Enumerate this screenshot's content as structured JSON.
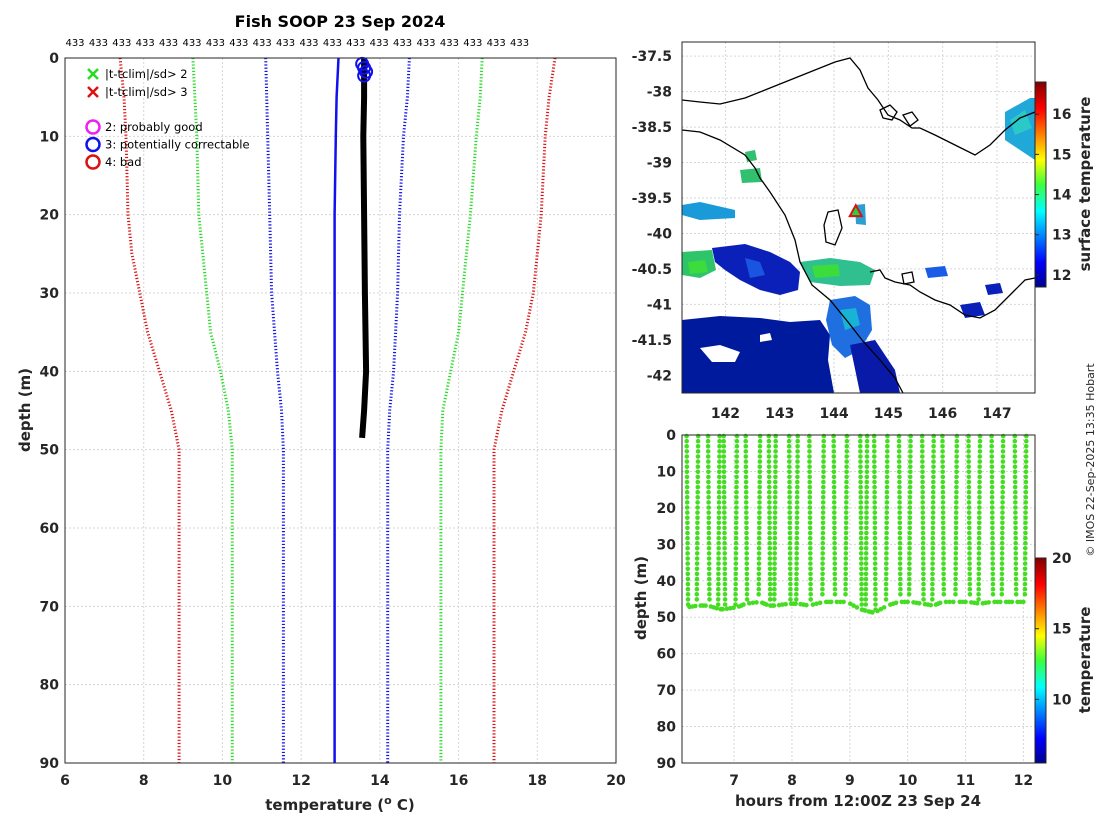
{
  "title": "Fish SOOP 23 Sep 2024",
  "credit": "© IMOS 22-Sep-2025 13:35 Hobart",
  "colors": {
    "green": "#22dd22",
    "red": "#dd1111",
    "blue": "#1111ee",
    "magenta": "#ee22ee",
    "black": "#000000"
  },
  "chart_data": [
    {
      "id": "profile",
      "type": "line",
      "xlabel": "temperature (o C)",
      "xlabel_main": "temperature (",
      "xlabel_sup": "o",
      "xlabel_end": " C)",
      "ylabel": "depth (m)",
      "xlim": [
        6,
        20
      ],
      "ylim": [
        90,
        0
      ],
      "xticks": [
        6,
        8,
        10,
        12,
        14,
        16,
        18,
        20
      ],
      "yticks": [
        0,
        10,
        20,
        30,
        40,
        50,
        60,
        70,
        80,
        90
      ],
      "top_labels": [
        "433",
        "433",
        "433",
        "433",
        "433",
        "433",
        "433",
        "433",
        "433",
        "433",
        "433",
        "433",
        "433",
        "433",
        "433",
        "433",
        "433",
        "433",
        "433",
        "433"
      ],
      "legend": [
        {
          "marker": "x",
          "color": "#22dd22",
          "label": "|t-tclim|/sd> 2"
        },
        {
          "marker": "x",
          "color": "#dd1111",
          "label": "|t-tclim|/sd> 3"
        },
        {
          "marker": "o",
          "color": "#ee22ee",
          "label": "2: probably good"
        },
        {
          "marker": "o",
          "color": "#1111ee",
          "label": "3: potentially correctable"
        },
        {
          "marker": "o",
          "color": "#dd1111",
          "label": "4: bad"
        }
      ],
      "series": [
        {
          "name": "clim -3sd",
          "color": "#dd1111",
          "style": "dotted",
          "points": [
            [
              7.4,
              0
            ],
            [
              7.5,
              5
            ],
            [
              7.55,
              10
            ],
            [
              7.6,
              20
            ],
            [
              7.7,
              25
            ],
            [
              7.9,
              30
            ],
            [
              8.1,
              35
            ],
            [
              8.4,
              40
            ],
            [
              8.7,
              45
            ],
            [
              8.9,
              50
            ],
            [
              8.9,
              90
            ]
          ]
        },
        {
          "name": "clim -2sd",
          "color": "#22dd22",
          "style": "dotted",
          "points": [
            [
              9.25,
              0
            ],
            [
              9.3,
              5
            ],
            [
              9.35,
              10
            ],
            [
              9.4,
              20
            ],
            [
              9.5,
              25
            ],
            [
              9.6,
              30
            ],
            [
              9.7,
              35
            ],
            [
              9.95,
              40
            ],
            [
              10.15,
              45
            ],
            [
              10.25,
              50
            ],
            [
              10.25,
              90
            ]
          ]
        },
        {
          "name": "clim -1sd",
          "color": "#1111ee",
          "style": "dotted",
          "points": [
            [
              11.1,
              0
            ],
            [
              11.15,
              10
            ],
            [
              11.2,
              20
            ],
            [
              11.25,
              30
            ],
            [
              11.4,
              40
            ],
            [
              11.5,
              45
            ],
            [
              11.55,
              50
            ],
            [
              11.55,
              90
            ]
          ]
        },
        {
          "name": "clim mean",
          "color": "#1111ee",
          "style": "solid",
          "points": [
            [
              12.95,
              0
            ],
            [
              12.9,
              5
            ],
            [
              12.88,
              10
            ],
            [
              12.85,
              20
            ],
            [
              12.85,
              30
            ],
            [
              12.85,
              40
            ],
            [
              12.85,
              50
            ],
            [
              12.85,
              90
            ]
          ]
        },
        {
          "name": "clim +1sd",
          "color": "#1111ee",
          "style": "dotted",
          "points": [
            [
              14.75,
              0
            ],
            [
              14.7,
              5
            ],
            [
              14.6,
              10
            ],
            [
              14.5,
              20
            ],
            [
              14.45,
              30
            ],
            [
              14.35,
              40
            ],
            [
              14.25,
              45
            ],
            [
              14.2,
              50
            ],
            [
              14.2,
              90
            ]
          ]
        },
        {
          "name": "clim +2sd",
          "color": "#22dd22",
          "style": "dotted",
          "points": [
            [
              16.6,
              0
            ],
            [
              16.55,
              5
            ],
            [
              16.45,
              10
            ],
            [
              16.3,
              20
            ],
            [
              16.2,
              25
            ],
            [
              16.1,
              30
            ],
            [
              16.0,
              35
            ],
            [
              15.8,
              40
            ],
            [
              15.6,
              45
            ],
            [
              15.55,
              50
            ],
            [
              15.55,
              90
            ]
          ]
        },
        {
          "name": "clim +3sd",
          "color": "#dd1111",
          "style": "dotted",
          "points": [
            [
              18.45,
              0
            ],
            [
              18.3,
              5
            ],
            [
              18.2,
              10
            ],
            [
              18.1,
              20
            ],
            [
              18.0,
              25
            ],
            [
              17.9,
              30
            ],
            [
              17.7,
              35
            ],
            [
              17.4,
              40
            ],
            [
              17.1,
              45
            ],
            [
              16.9,
              50
            ],
            [
              16.9,
              90
            ]
          ]
        },
        {
          "name": "profiles",
          "color": "#000000",
          "style": "solid",
          "points": [
            [
              13.6,
              0
            ],
            [
              13.6,
              5
            ],
            [
              13.58,
              10
            ],
            [
              13.6,
              20
            ],
            [
              13.62,
              30
            ],
            [
              13.65,
              40
            ],
            [
              13.6,
              45
            ],
            [
              13.55,
              48.5
            ]
          ]
        }
      ],
      "flag3_markers": [
        [
          13.55,
          0.5
        ],
        [
          13.6,
          1.0
        ],
        [
          13.65,
          1.5
        ],
        [
          13.6,
          2.0
        ]
      ]
    },
    {
      "id": "map",
      "type": "heatmap",
      "colorbar_label": "surface temperature",
      "xlim": [
        141.2,
        147.7
      ],
      "ylim": [
        -42.25,
        -37.3
      ],
      "xticks": [
        142,
        143,
        144,
        145,
        146,
        147
      ],
      "yticks": [
        -37.5,
        -38,
        -38.5,
        -39,
        -39.5,
        -40,
        -40.5,
        -41,
        -41.5,
        -42
      ],
      "ytick_labels": [
        "-37.5",
        "-38",
        "-38.5",
        "-39",
        "-39.5",
        "-40",
        "-40.5",
        "-41",
        "-41.5",
        "-42"
      ],
      "colorbar_range": [
        11.7,
        16.8
      ],
      "colorbar_ticks": [
        12,
        13,
        14,
        15,
        16
      ],
      "ship_track_marker": {
        "lon": 144.4,
        "lat": -39.7,
        "marker": "triangle"
      }
    },
    {
      "id": "timeseries",
      "type": "scatter",
      "xlabel": "hours from 12:00Z 23 Sep 24",
      "ylabel": "depth (m)",
      "colorbar_label": "temperature",
      "xlim": [
        6.1,
        12.2
      ],
      "ylim": [
        90,
        0
      ],
      "xticks": [
        7,
        8,
        9,
        10,
        11,
        12
      ],
      "yticks": [
        0,
        10,
        20,
        30,
        40,
        50,
        60,
        70,
        80,
        90
      ],
      "colorbar_range": [
        5.5,
        20
      ],
      "colorbar_ticks": [
        10,
        15,
        20
      ],
      "point_color": "#44dd22",
      "casts": [
        {
          "t": 6.18,
          "bottom": 46.5
        },
        {
          "t": 6.38,
          "bottom": 46
        },
        {
          "t": 6.55,
          "bottom": 46
        },
        {
          "t": 6.75,
          "bottom": 47
        },
        {
          "t": 6.82,
          "bottom": 47
        },
        {
          "t": 7.05,
          "bottom": 46.5
        },
        {
          "t": 7.2,
          "bottom": 45.5
        },
        {
          "t": 7.45,
          "bottom": 45
        },
        {
          "t": 7.6,
          "bottom": 46
        },
        {
          "t": 7.72,
          "bottom": 46
        },
        {
          "t": 7.95,
          "bottom": 45.5
        },
        {
          "t": 8.1,
          "bottom": 45.5
        },
        {
          "t": 8.3,
          "bottom": 46
        },
        {
          "t": 8.55,
          "bottom": 45
        },
        {
          "t": 8.72,
          "bottom": 45
        },
        {
          "t": 8.95,
          "bottom": 45
        },
        {
          "t": 9.18,
          "bottom": 47
        },
        {
          "t": 9.3,
          "bottom": 47.5
        },
        {
          "t": 9.42,
          "bottom": 48
        },
        {
          "t": 9.65,
          "bottom": 46
        },
        {
          "t": 9.85,
          "bottom": 45
        },
        {
          "t": 10.05,
          "bottom": 45
        },
        {
          "t": 10.25,
          "bottom": 45.5
        },
        {
          "t": 10.45,
          "bottom": 46
        },
        {
          "t": 10.6,
          "bottom": 45
        },
        {
          "t": 10.85,
          "bottom": 45
        },
        {
          "t": 11.05,
          "bottom": 45
        },
        {
          "t": 11.25,
          "bottom": 45.5
        },
        {
          "t": 11.45,
          "bottom": 45
        },
        {
          "t": 11.65,
          "bottom": 45
        },
        {
          "t": 11.85,
          "bottom": 45
        },
        {
          "t": 12.05,
          "bottom": 45
        }
      ]
    }
  ]
}
